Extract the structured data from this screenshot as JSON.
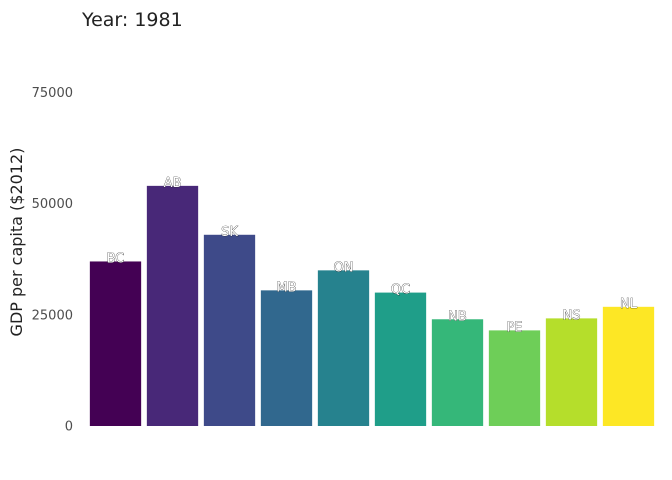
{
  "chart_data": {
    "type": "bar",
    "title": "Year: 1981",
    "xlabel": "",
    "ylabel": "GDP per capita ($2012)",
    "categories": [
      "BC",
      "AB",
      "SK",
      "MB",
      "ON",
      "QC",
      "NB",
      "PE",
      "NS",
      "NL"
    ],
    "values": [
      37000,
      54000,
      43000,
      30500,
      35000,
      30000,
      24000,
      21500,
      24200,
      26800
    ],
    "ylim": [
      0,
      85000
    ],
    "yticks": [
      0,
      25000,
      50000,
      75000
    ],
    "ytick_labels": [
      "0",
      "25000",
      "50000",
      "75000"
    ],
    "colors": [
      "#440154",
      "#482878",
      "#3e4a89",
      "#31688e",
      "#26828e",
      "#1f9e89",
      "#35b779",
      "#6ece58",
      "#b5de2b",
      "#fde725"
    ],
    "grid": false,
    "legend": "none"
  }
}
